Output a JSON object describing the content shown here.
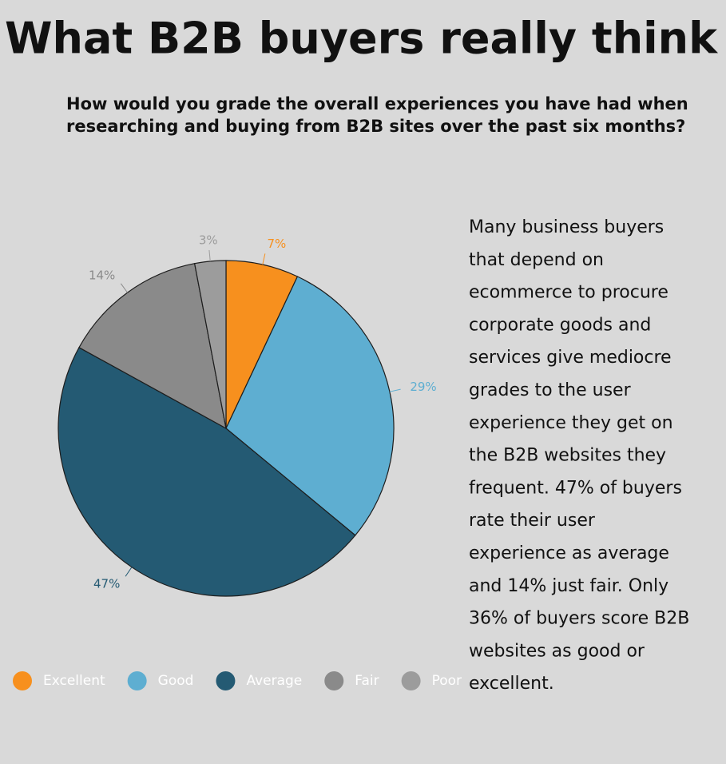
{
  "title": "What B2B buyers really think",
  "subtitle_lines": [
    "How would you grade the overall experiences you have had when",
    "researching and buying from B2B sites over the past six months?"
  ],
  "chart_data": {
    "type": "pie",
    "categories": [
      "Excellent",
      "Good",
      "Average",
      "Fair",
      "Poor"
    ],
    "values": [
      7,
      29,
      47,
      14,
      3
    ],
    "value_labels": [
      "7%",
      "29%",
      "47%",
      "14%",
      "3%"
    ],
    "colors": [
      "#f7901e",
      "#5eaed1",
      "#245a73",
      "#8a8a8a",
      "#9c9c9c"
    ],
    "label_colors": [
      "#f7901e",
      "#5eaed1",
      "#245a73",
      "#8a8a8a",
      "#9c9c9c"
    ],
    "legend": "bottom"
  },
  "body_lines": [
    "Many business buyers",
    "that depend on",
    "ecommerce  to procure",
    "corporate goods and",
    "services give mediocre",
    "grades to  the user",
    "experience they get on",
    "the B2B websites they",
    "frequent. 47% of buyers",
    "rate their user",
    "experience as average",
    "and 14% just fair. Only",
    "36% of buyers score B2B",
    "websites as good or",
    "excellent."
  ]
}
